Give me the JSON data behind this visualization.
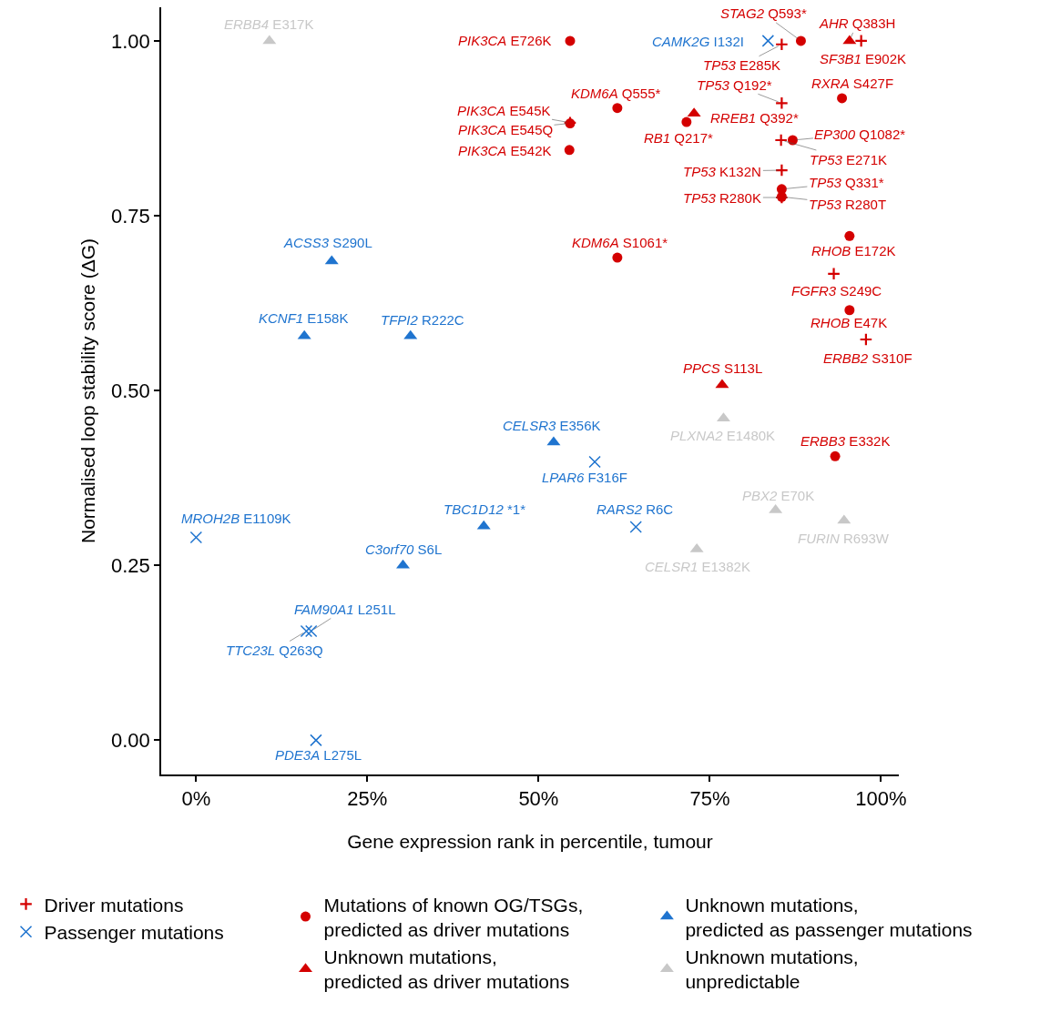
{
  "chart_data": {
    "type": "scatter",
    "xlabel": "Gene expression rank in percentile, tumour",
    "ylabel": "Normalised loop stability score (ΔG)",
    "xlim": [
      -5.1,
      102.6
    ],
    "ylim": [
      -0.049,
      1.048
    ],
    "xticks": [
      {
        "value": 0,
        "label": "0%"
      },
      {
        "value": 25,
        "label": "25%"
      },
      {
        "value": 50,
        "label": "50%"
      },
      {
        "value": 75,
        "label": "75%"
      },
      {
        "value": 100,
        "label": "100%"
      }
    ],
    "yticks": [
      {
        "value": 0,
        "label": "0.00"
      },
      {
        "value": 0.25,
        "label": "0.25"
      },
      {
        "value": 0.5,
        "label": "0.50"
      },
      {
        "value": 0.75,
        "label": "0.75"
      },
      {
        "value": 1,
        "label": "1.00"
      }
    ],
    "legend": "bottom",
    "series": [
      {
        "name": "Driver mutations",
        "color": "#d40000",
        "marker": "cross",
        "x": [
          85.5,
          97.1,
          85.5,
          85.4,
          85.5,
          85.5,
          93.1,
          97.8,
          54.6
        ],
        "values": [
          0.995,
          1.0,
          0.911,
          0.858,
          0.815,
          0.776,
          0.667,
          0.573,
          0.883
        ],
        "value_labels": [
          "TP53 E285K",
          "SF3B1 E902K",
          "TP53 Q192*",
          "TP53 E271K",
          "TP53 K132N",
          "TP53 R280K",
          "FGFR3 S249C",
          "ERBB2 S310F",
          "PIK3CA E545K"
        ]
      },
      {
        "name": "Mutations of known OG/TSGs, predicted as driver mutations",
        "color": "#d40000",
        "marker": "circle",
        "x": [
          88.3,
          94.3,
          61.5,
          71.6,
          87.1,
          85.5,
          85.5,
          61.5,
          95.4,
          95.4,
          93.3,
          54.6,
          54.5,
          54.6
        ],
        "values": [
          1.0,
          0.918,
          0.904,
          0.884,
          0.858,
          0.788,
          0.777,
          0.69,
          0.721,
          0.615,
          0.406,
          0.882,
          0.844,
          1.0
        ],
        "value_labels": [
          "STAG2 Q593*",
          "RXRA S427F",
          "KDM6A Q555*",
          "RB1 Q217*",
          "EP300 Q1082*",
          "TP53 Q331*",
          "TP53 R280T",
          "KDM6A S1061*",
          "RHOB E172K",
          "RHOB E47K",
          "ERBB3 E332K",
          "PIK3CA E545Q",
          "PIK3CA E542K",
          "PIK3CA E726K"
        ]
      },
      {
        "name": "Unknown mutations, predicted as passenger mutations",
        "color": "#1f74cf",
        "marker": "triangle",
        "x": [
          19.8,
          15.8,
          31.3,
          52.2,
          42.0,
          30.2
        ],
        "values": [
          0.685,
          0.578,
          0.578,
          0.426,
          0.306,
          0.25
        ],
        "value_labels": [
          "ACSS3 S290L",
          "KCNF1 E158K",
          "TFPI2 R222C",
          "CELSR3 E356K",
          "TBC1D12 *1*",
          "C3orf70 S6L"
        ]
      },
      {
        "name": "Passenger mutations",
        "color": "#1f74cf",
        "marker": "x",
        "x": [
          83.5,
          58.2,
          64.2,
          0,
          16.1,
          16.8,
          17.5
        ],
        "values": [
          1.0,
          0.398,
          0.305,
          0.29,
          0.156,
          0.156,
          0.0
        ],
        "value_labels": [
          "CAMK2G I132I",
          "LPAR6 F316F",
          "RARS2 R6C",
          "MROH2B E1109K",
          "TTC23L Q263Q",
          "FAM90A1 L251L",
          "PDE3A L275L"
        ]
      },
      {
        "name": "Unknown mutations, predicted as driver mutations",
        "color": "#d40000",
        "marker": "triangle",
        "x": [
          95.4,
          72.7,
          76.8
        ],
        "values": [
          1.0,
          0.896,
          0.508
        ],
        "value_labels": [
          "AHR Q383H",
          "RREB1 Q392*",
          "PPCS S113L"
        ]
      },
      {
        "name": "Unknown mutations, unpredictable",
        "color": "#c8c8c8",
        "marker": "triangle",
        "x": [
          10.7,
          77.0,
          84.6,
          94.6,
          73.1
        ],
        "values": [
          1.0,
          0.46,
          0.329,
          0.314,
          0.273
        ],
        "value_labels": [
          "ERBB4 E317K",
          "PLXNA2 E1480K",
          "PBX2 E70K",
          "FURIN R693W",
          "CELSR1 E1382K"
        ]
      }
    ]
  }
}
